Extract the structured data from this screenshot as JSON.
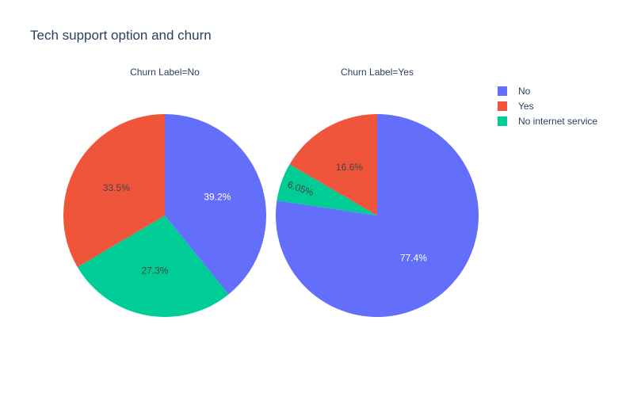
{
  "chart_data": {
    "type": "pie",
    "title": "Tech support option and churn",
    "legend": {
      "placement": "top-right",
      "entries": [
        {
          "name": "No",
          "color": "#636efa"
        },
        {
          "name": "Yes",
          "color": "#ef553b"
        },
        {
          "name": "No internet service",
          "color": "#00cc96"
        }
      ]
    },
    "pies": [
      {
        "subtitle": "Churn Label=No",
        "slices": [
          {
            "category": "No",
            "value": 39.2,
            "label": "39.2%"
          },
          {
            "category": "No internet service",
            "value": 27.3,
            "label": "27.3%"
          },
          {
            "category": "Yes",
            "value": 33.5,
            "label": "33.5%"
          }
        ]
      },
      {
        "subtitle": "Churn Label=Yes",
        "slices": [
          {
            "category": "No",
            "value": 77.4,
            "label": "77.4%"
          },
          {
            "category": "No internet service",
            "value": 6.05,
            "label": "6.05%"
          },
          {
            "category": "Yes",
            "value": 16.6,
            "label": "16.6%"
          }
        ]
      }
    ]
  }
}
